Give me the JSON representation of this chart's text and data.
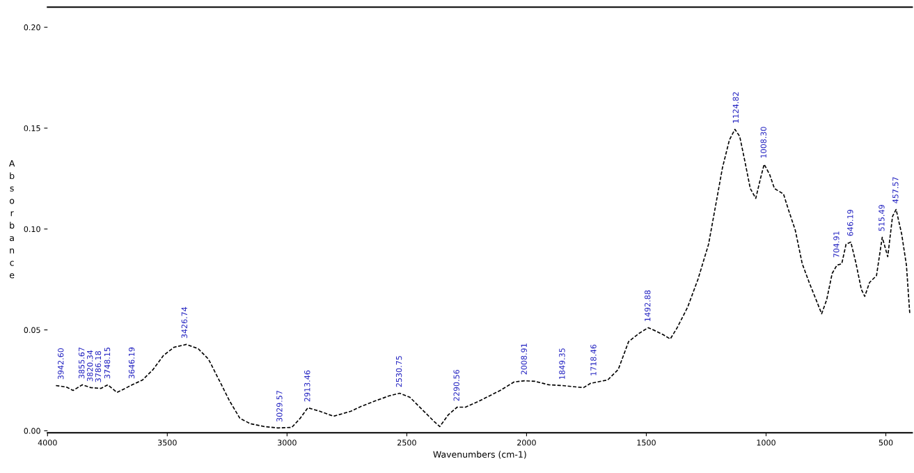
{
  "chart_data": {
    "type": "line",
    "xlabel": "Wavenumbers (cm-1)",
    "ylabel": "Absorbance",
    "xlim": [
      4000,
      390
    ],
    "xticks": [
      4000,
      3500,
      3000,
      2500,
      2000,
      1500,
      1000,
      500
    ],
    "ylim": [
      -0.001,
      0.21
    ],
    "yticks": [
      {
        "value": 0,
        "label": "0.00"
      },
      {
        "value": 0.05,
        "label": "0.05"
      },
      {
        "value": 0.1,
        "label": "0.10"
      },
      {
        "value": 0.15,
        "label": "0.15"
      },
      {
        "value": 0.2,
        "label": "0.20"
      }
    ],
    "grid": false,
    "legend": false,
    "line_style": "dashed",
    "marker": "none",
    "series": [
      {
        "color": "#000000",
        "x": [
          3965,
          3922,
          3893,
          3855,
          3820,
          3777,
          3748,
          3710,
          3681,
          3646,
          3603,
          3559,
          3516,
          3472,
          3420,
          3371,
          3328,
          3284,
          3240,
          3197,
          3153,
          3096,
          3038,
          2980,
          2945,
          2913,
          2864,
          2806,
          2733,
          2690,
          2632,
          2574,
          2530,
          2487,
          2429,
          2385,
          2362,
          2327,
          2290,
          2255,
          2197,
          2110,
          2052,
          2008,
          1965,
          1907,
          1849,
          1791,
          1762,
          1733,
          1704,
          1661,
          1617,
          1574,
          1530,
          1492,
          1458,
          1429,
          1400,
          1371,
          1327,
          1284,
          1240,
          1211,
          1182,
          1153,
          1130,
          1110,
          1089,
          1066,
          1043,
          1023,
          1008,
          985,
          965,
          927,
          907,
          878,
          849,
          820,
          791,
          768,
          747,
          724,
          704,
          684,
          666,
          646,
          626,
          602,
          588,
          568,
          539,
          515,
          492,
          472,
          457,
          434,
          414,
          400
        ],
        "values": [
          0.0224,
          0.0217,
          0.02,
          0.0228,
          0.0214,
          0.021,
          0.0228,
          0.019,
          0.0207,
          0.0228,
          0.0252,
          0.0304,
          0.0373,
          0.0414,
          0.0428,
          0.0407,
          0.0355,
          0.0252,
          0.0148,
          0.0062,
          0.0035,
          0.0021,
          0.0014,
          0.0017,
          0.0062,
          0.0114,
          0.0097,
          0.0072,
          0.0097,
          0.0121,
          0.0148,
          0.0173,
          0.0186,
          0.0166,
          0.0097,
          0.0045,
          0.0021,
          0.0079,
          0.0117,
          0.0117,
          0.0148,
          0.02,
          0.0242,
          0.0248,
          0.0245,
          0.0228,
          0.0224,
          0.0217,
          0.0214,
          0.0235,
          0.0242,
          0.0252,
          0.0304,
          0.0442,
          0.0483,
          0.0511,
          0.0493,
          0.0476,
          0.0455,
          0.0511,
          0.0614,
          0.0752,
          0.0925,
          0.1114,
          0.1304,
          0.1442,
          0.1494,
          0.1459,
          0.1339,
          0.1201,
          0.1152,
          0.1252,
          0.1321,
          0.127,
          0.1201,
          0.1173,
          0.1097,
          0.0994,
          0.0828,
          0.0735,
          0.0649,
          0.058,
          0.0649,
          0.078,
          0.0821,
          0.0828,
          0.0925,
          0.0935,
          0.0838,
          0.07,
          0.0666,
          0.0735,
          0.0769,
          0.0959,
          0.0863,
          0.1063,
          0.1097,
          0.0976,
          0.0821,
          0.058
        ]
      }
    ],
    "annotations": [
      {
        "text": "3942.60",
        "x": 3942,
        "y": 0.0224
      },
      {
        "text": "3855.67",
        "x": 3855,
        "y": 0.0228
      },
      {
        "text": "3820.34",
        "x": 3820,
        "y": 0.0214
      },
      {
        "text": "3786.18",
        "x": 3786,
        "y": 0.021
      },
      {
        "text": "3748.15",
        "x": 3748,
        "y": 0.0228
      },
      {
        "text": "3646.19",
        "x": 3646,
        "y": 0.0228
      },
      {
        "text": "3426.74",
        "x": 3426,
        "y": 0.0428
      },
      {
        "text": "3029.57",
        "x": 3029,
        "y": 0.0014
      },
      {
        "text": "2913.46",
        "x": 2913,
        "y": 0.0114
      },
      {
        "text": "2530.75",
        "x": 2530,
        "y": 0.0186
      },
      {
        "text": "2290.56",
        "x": 2290,
        "y": 0.0117
      },
      {
        "text": "2008.91",
        "x": 2008,
        "y": 0.0248
      },
      {
        "text": "1849.35",
        "x": 1849,
        "y": 0.0224
      },
      {
        "text": "1718.46",
        "x": 1718,
        "y": 0.0242
      },
      {
        "text": "1492.88",
        "x": 1492,
        "y": 0.0511
      },
      {
        "text": "1124.82",
        "x": 1124,
        "y": 0.1494
      },
      {
        "text": "1008.30",
        "x": 1008,
        "y": 0.1321
      },
      {
        "text": "704.91",
        "x": 704,
        "y": 0.0828
      },
      {
        "text": "646.19",
        "x": 646,
        "y": 0.0935
      },
      {
        "text": "515.49",
        "x": 515,
        "y": 0.0959
      },
      {
        "text": "457.57",
        "x": 457,
        "y": 0.1097
      }
    ]
  }
}
